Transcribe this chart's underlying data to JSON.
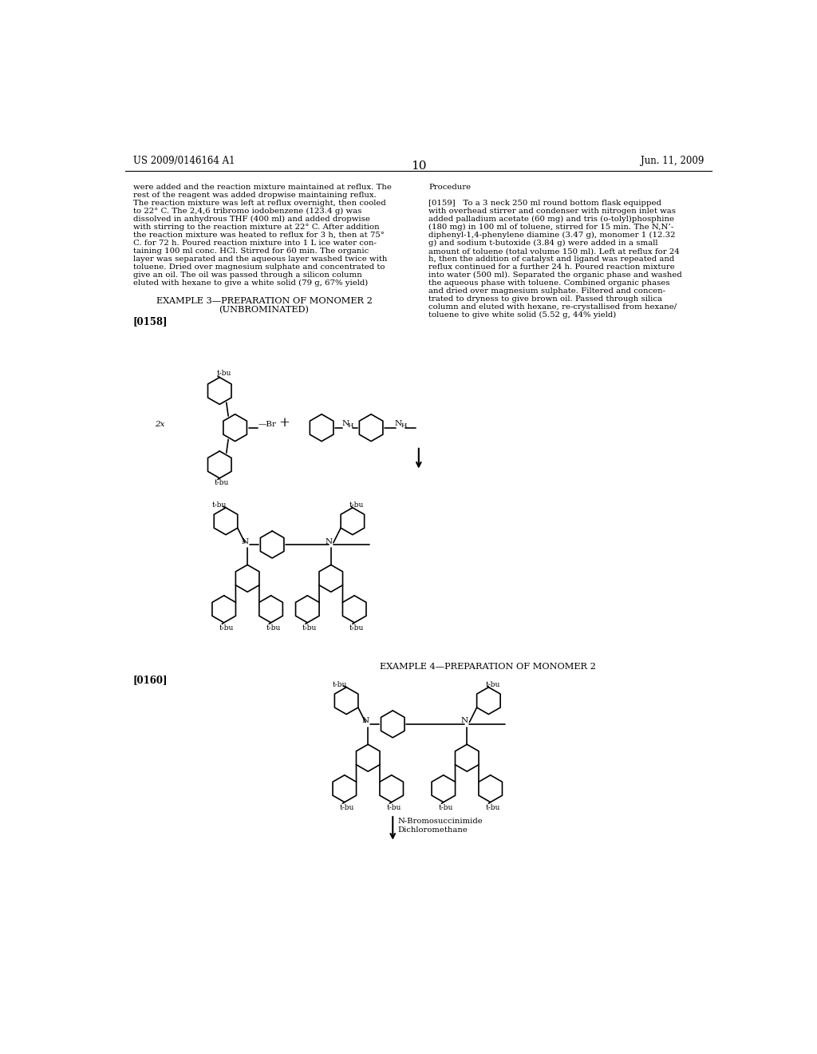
{
  "page_number": "10",
  "patent_number": "US 2009/0146164 A1",
  "patent_date": "Jun. 11, 2009",
  "background_color": "#ffffff",
  "left_lines": [
    "were added and the reaction mixture maintained at reflux. The",
    "rest of the reagent was added dropwise maintaining reflux.",
    "The reaction mixture was left at reflux overnight, then cooled",
    "to 22° C. The 2,4,6 tribromo iodobenzene (123.4 g) was",
    "dissolved in anhydrous THF (400 ml) and added dropwise",
    "with stirring to the reaction mixture at 22° C. After addition",
    "the reaction mixture was heated to reflux for 3 h, then at 75°",
    "C. for 72 h. Poured reaction mixture into 1 L ice water con-",
    "taining 100 ml conc. HCl. Stirred for 60 min. The organic",
    "layer was separated and the aqueous layer washed twice with",
    "toluene. Dried over magnesium sulphate and concentrated to",
    "give an oil. The oil was passed through a silicon column",
    "eluted with hexane to give a white solid (79 g, 67% yield)"
  ],
  "right_lines": [
    "Procedure",
    "",
    "[0159]   To a 3 neck 250 ml round bottom flask equipped",
    "with overhead stirrer and condenser with nitrogen inlet was",
    "added palladium acetate (60 mg) and tris (o-tolyl)phosphine",
    "(180 mg) in 100 ml of toluene, stirred for 15 min. The N,N’-",
    "diphenyl-1,4-phenylene diamine (3.47 g), monomer 1 (12.32",
    "g) and sodium t-butoxide (3.84 g) were added in a small",
    "amount of toluene (total volume 150 ml). Left at reflux for 24",
    "h, then the addition of catalyst and ligand was repeated and",
    "reflux continued for a further 24 h. Poured reaction mixture",
    "into water (500 ml). Separated the organic phase and washed",
    "the aqueous phase with toluene. Combined organic phases",
    "and dried over magnesium sulphate. Filtered and concen-",
    "trated to dryness to give brown oil. Passed through silica",
    "column and eluted with hexane, re-crystallised from hexane/",
    "toluene to give white solid (5.52 g, 44% yield)"
  ],
  "example3_title": "EXAMPLE 3—PREPARATION OF MONOMER 2",
  "example3_subtitle": "(UNBROMINATED)",
  "example3_ref": "[0158]",
  "example4_title": "EXAMPLE 4—PREPARATION OF MONOMER 2",
  "example4_ref": "[0160]",
  "arrow_label1": "N-Bromosuccinimide",
  "arrow_label2": "Dichloromethane"
}
